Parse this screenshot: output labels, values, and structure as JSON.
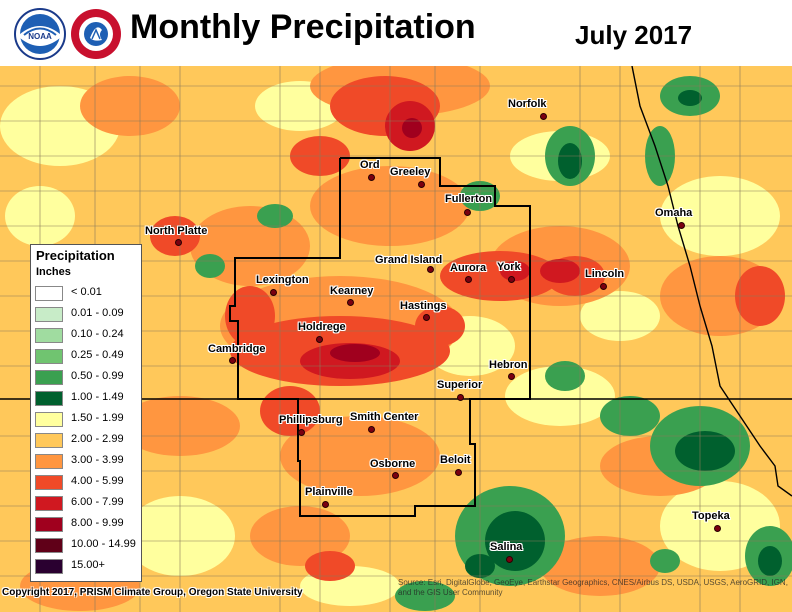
{
  "header": {
    "title": "Monthly Precipitation",
    "date": "July 2017",
    "logos": [
      {
        "name": "noaa-logo",
        "icon": "noaa-seal"
      },
      {
        "name": "nws-logo",
        "icon": "national-weather-service-seal",
        "text": "NATIONAL WEATHER SERVICE"
      }
    ]
  },
  "legend": {
    "title": "Precipitation",
    "units": "Inches",
    "bins": [
      {
        "label": "< 0.01",
        "color": "#ffffff"
      },
      {
        "label": "0.01 - 0.09",
        "color": "#c8ecc8"
      },
      {
        "label": "0.10 - 0.24",
        "color": "#a0dca0"
      },
      {
        "label": "0.25 - 0.49",
        "color": "#70c470"
      },
      {
        "label": "0.50 - 0.99",
        "color": "#3aa050"
      },
      {
        "label": "1.00 - 1.49",
        "color": "#00602e"
      },
      {
        "label": "1.50 - 1.99",
        "color": "#ffff9e"
      },
      {
        "label": "2.00 - 2.99",
        "color": "#ffc85a"
      },
      {
        "label": "3.00 - 3.99",
        "color": "#ff9640"
      },
      {
        "label": "4.00 - 5.99",
        "color": "#f04a28"
      },
      {
        "label": "6.00 - 7.99",
        "color": "#d01820"
      },
      {
        "label": "8.00 - 9.99",
        "color": "#a0001e"
      },
      {
        "label": "10.00 - 14.99",
        "color": "#600018"
      },
      {
        "label": "15.00+",
        "color": "#2a0030"
      }
    ]
  },
  "cities": [
    {
      "name": "Norfolk"
    },
    {
      "name": "Ord"
    },
    {
      "name": "Greeley"
    },
    {
      "name": "Fullerton"
    },
    {
      "name": "Omaha"
    },
    {
      "name": "North Platte"
    },
    {
      "name": "Grand Island"
    },
    {
      "name": "Aurora"
    },
    {
      "name": "York"
    },
    {
      "name": "Lincoln"
    },
    {
      "name": "Lexington"
    },
    {
      "name": "Kearney"
    },
    {
      "name": "Hastings"
    },
    {
      "name": "Holdrege"
    },
    {
      "name": "Cambridge"
    },
    {
      "name": "Hebron"
    },
    {
      "name": "Superior"
    },
    {
      "name": "Phillipsburg"
    },
    {
      "name": "Smith Center"
    },
    {
      "name": "Osborne"
    },
    {
      "name": "Beloit"
    },
    {
      "name": "Plainville"
    },
    {
      "name": "Topeka"
    },
    {
      "name": "Salina"
    }
  ],
  "footer": {
    "copyright": "Copyright 2017, PRISM Climate Group, Oregon State University",
    "source": "Source: Esri, DigitalGlobe, GeoEye, Earthstar Geographics, CNES/Airbus DS, USDA, USGS, AeroGRID, IGN, and the GIS User Community"
  }
}
